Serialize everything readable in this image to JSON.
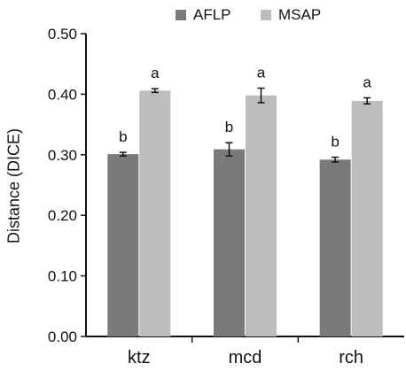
{
  "chart_data": {
    "type": "bar",
    "title": "",
    "xlabel": "",
    "ylabel": "Distance (DICE)",
    "categories": [
      "ktz",
      "mcd",
      "rch"
    ],
    "series": [
      {
        "name": "AFLP",
        "color": "#7a7a7a",
        "values": [
          0.301,
          0.309,
          0.292
        ],
        "errors": [
          0.003,
          0.011,
          0.004
        ],
        "letters": [
          "b",
          "b",
          "b"
        ]
      },
      {
        "name": "MSAP",
        "color": "#bdbdbd",
        "values": [
          0.406,
          0.398,
          0.389
        ],
        "errors": [
          0.003,
          0.012,
          0.005
        ],
        "letters": [
          "a",
          "a",
          "a"
        ]
      }
    ],
    "ylim": [
      0,
      0.5
    ],
    "yticks": [
      "0.00",
      "0.10",
      "0.20",
      "0.30",
      "0.40",
      "0.50"
    ],
    "grid": false,
    "legend_position": "top-center"
  }
}
